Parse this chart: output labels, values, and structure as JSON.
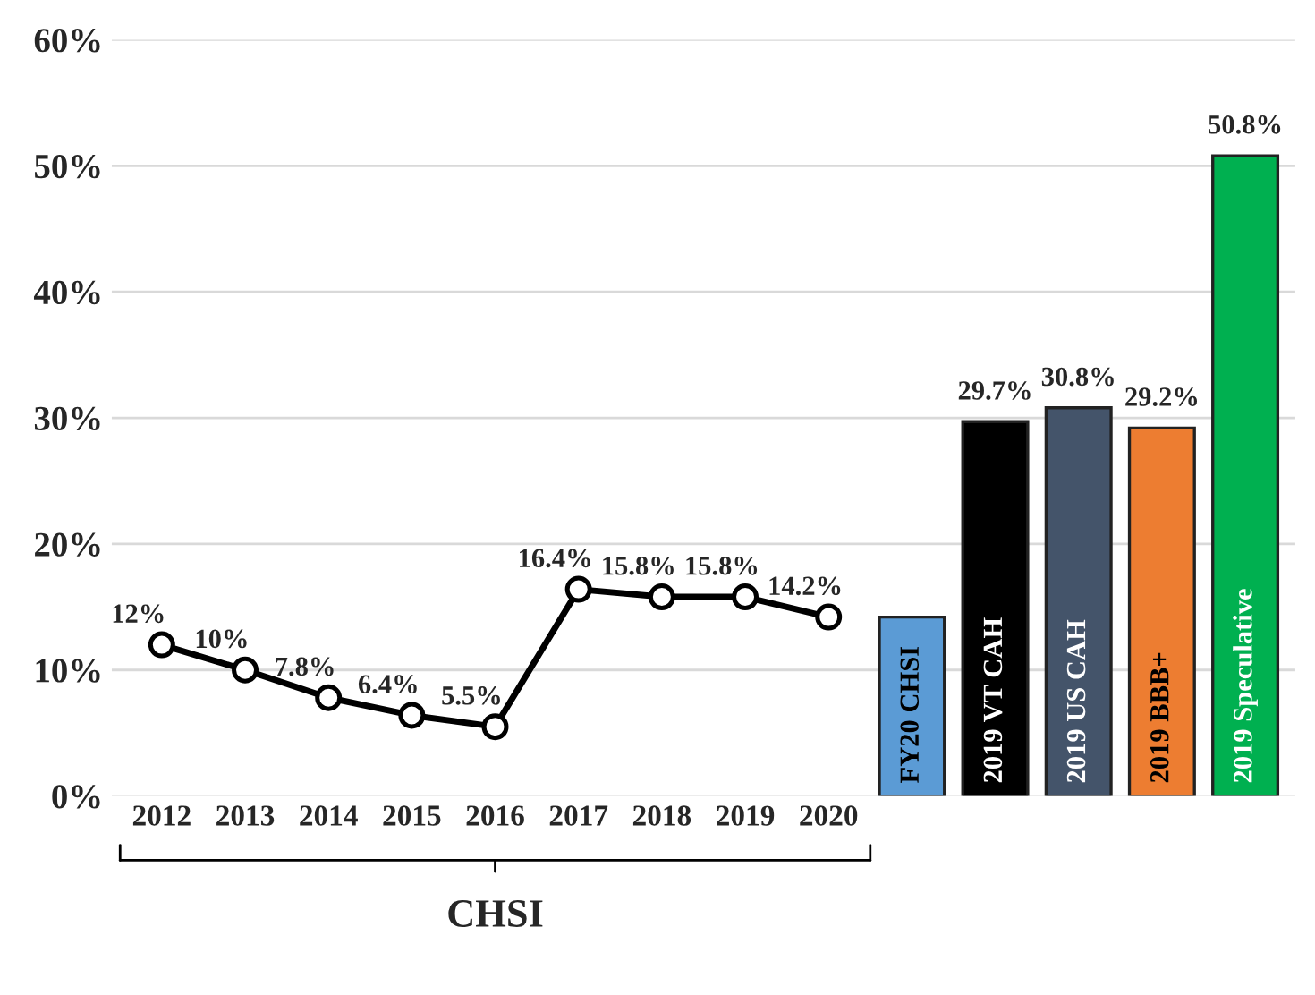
{
  "chart_data": {
    "type": "line",
    "categories": [
      "2012",
      "2013",
      "2014",
      "2015",
      "2016",
      "2017",
      "2018",
      "2019",
      "2020",
      "FY20 CHSI",
      "2019 VT CAH",
      "2019 US CAH",
      "2019 BBB+",
      "2019 Speculative"
    ],
    "series": [
      {
        "color": "#000000",
        "marker": "circle",
        "line_style": "solid",
        "values": [
          12,
          10,
          7.8,
          6.4,
          5.5,
          16.4,
          15.8,
          15.8,
          14.2,
          null,
          null,
          null,
          null,
          null
        ],
        "value_labels": [
          "12%",
          "10%",
          "7.8%",
          "6.4%",
          "5.5%",
          "16.4%",
          "15.8%",
          "15.8%",
          "14.2%",
          null,
          null,
          null,
          null,
          null
        ]
      },
      {
        "type": "bar",
        "colors": [
          "#5b9bd5",
          "#5b9bd5",
          "#5b9bd5",
          "#5b9bd5",
          "#5b9bd5",
          "#5b9bd5",
          "#5b9bd5",
          "#5b9bd5",
          "#5b9bd5",
          "#5b9bd5",
          "#000000",
          "#44546a",
          "#ed7d31",
          "#00b050"
        ],
        "values": [
          null,
          null,
          null,
          null,
          null,
          null,
          null,
          null,
          null,
          14.2,
          29.7,
          30.8,
          29.2,
          50.8
        ],
        "value_labels": [
          null,
          null,
          null,
          null,
          null,
          null,
          null,
          null,
          null,
          null,
          "29.7%",
          "30.8%",
          "29.2%",
          "50.8%"
        ]
      }
    ],
    "ylim": [
      0,
      60
    ],
    "yticks": [
      {
        "value": 0,
        "label": "0%"
      },
      {
        "value": 10,
        "label": "10%"
      },
      {
        "value": 20,
        "label": "20%"
      },
      {
        "value": 30,
        "label": "30%"
      },
      {
        "value": 40,
        "label": "40%"
      },
      {
        "value": 50,
        "label": "50%"
      },
      {
        "value": 60,
        "label": "60%"
      }
    ],
    "grid": "y",
    "legend": false,
    "annotations": [
      "CHSI"
    ]
  }
}
